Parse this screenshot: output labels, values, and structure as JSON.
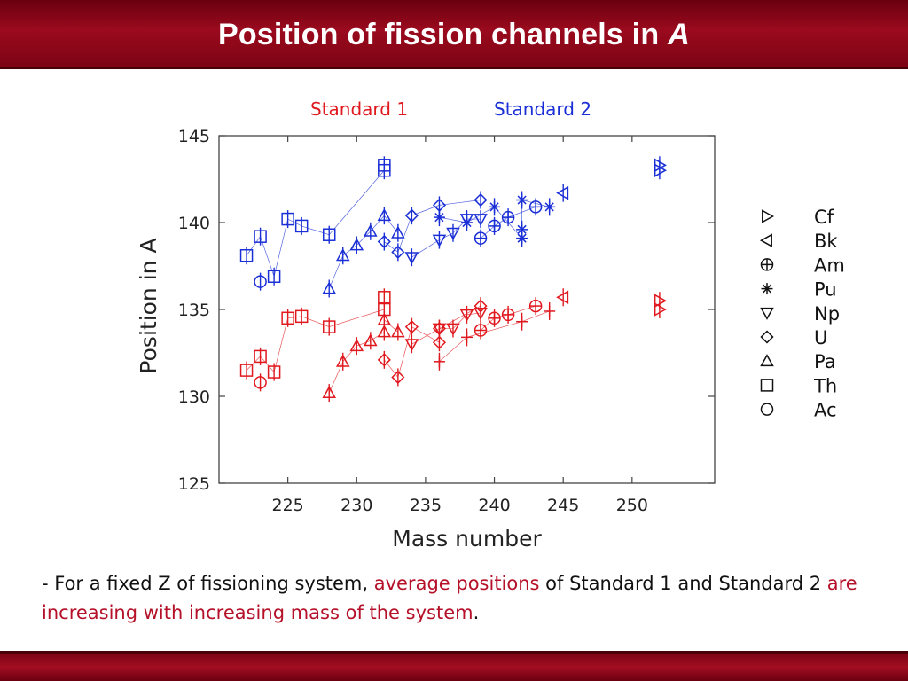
{
  "header": {
    "title_main": "Position of fission channels in",
    "title_var": "A"
  },
  "labels": {
    "standard1": "Standard 1",
    "standard2": "Standard 2"
  },
  "colors": {
    "standard1": "#e0191f",
    "standard2": "#1a2fd6",
    "header": "#9b0a1e",
    "highlight": "#b5122a"
  },
  "bullet": {
    "prefix": "- For a fixed Z of fissioning system, ",
    "hl1": "average positions",
    "mid": " of Standard 1 and Standard 2 ",
    "hl2": "are increasing with increasing mass of the system",
    "suffix": "."
  },
  "chart_data": {
    "type": "scatter",
    "xlabel": "Mass number",
    "ylabel": "Position in A",
    "xlim": [
      220,
      256
    ],
    "ylim": [
      125,
      145
    ],
    "xticks": [
      225,
      230,
      235,
      240,
      245,
      250
    ],
    "yticks": [
      125,
      130,
      135,
      140,
      145
    ],
    "grid": false,
    "legend_position": "right",
    "legend": [
      {
        "symbol": "tri-right",
        "label": "Cf"
      },
      {
        "symbol": "tri-left",
        "label": "Bk"
      },
      {
        "symbol": "circle-plus",
        "label": "Am"
      },
      {
        "symbol": "asterisk",
        "label": "Pu"
      },
      {
        "symbol": "tri-down",
        "label": "Np"
      },
      {
        "symbol": "diamond",
        "label": "U"
      },
      {
        "symbol": "tri-up",
        "label": "Pa"
      },
      {
        "symbol": "square",
        "label": "Th"
      },
      {
        "symbol": "circle",
        "label": "Ac"
      }
    ],
    "series": [
      {
        "name": "Standard 1",
        "element": "Th",
        "symbol": "square",
        "color": "#e0191f",
        "x": [
          222,
          223,
          224,
          225,
          226,
          228,
          232,
          232
        ],
        "y": [
          131.5,
          132.3,
          131.4,
          134.5,
          134.6,
          134.0,
          135.0,
          135.7
        ]
      },
      {
        "name": "Standard 1",
        "element": "Ac",
        "symbol": "circle",
        "color": "#e0191f",
        "x": [
          223
        ],
        "y": [
          130.8
        ]
      },
      {
        "name": "Standard 1",
        "element": "Pa",
        "symbol": "tri-up",
        "color": "#e0191f",
        "x": [
          228,
          229,
          230,
          231,
          232,
          232,
          233
        ],
        "y": [
          130.2,
          132.0,
          132.9,
          133.2,
          133.7,
          134.4,
          133.7
        ]
      },
      {
        "name": "Standard 1",
        "element": "U",
        "symbol": "diamond",
        "color": "#e0191f",
        "x": [
          232,
          233,
          234,
          236,
          236,
          239
        ],
        "y": [
          132.1,
          131.1,
          134.0,
          133.1,
          133.9,
          135.2
        ]
      },
      {
        "name": "Standard 1",
        "element": "Np",
        "symbol": "tri-down",
        "color": "#e0191f",
        "x": [
          234,
          236,
          237,
          238,
          239
        ],
        "y": [
          133.0,
          133.9,
          133.9,
          134.7,
          134.8
        ]
      },
      {
        "name": "Standard 1",
        "element": "Pu",
        "symbol": "plus",
        "color": "#e0191f",
        "x": [
          236,
          238,
          242,
          244
        ],
        "y": [
          132.0,
          133.4,
          134.3,
          134.9
        ]
      },
      {
        "name": "Standard 1",
        "element": "Am",
        "symbol": "circle-plus",
        "color": "#e0191f",
        "x": [
          239,
          240,
          241,
          243
        ],
        "y": [
          133.8,
          134.5,
          134.7,
          135.2
        ]
      },
      {
        "name": "Standard 1",
        "element": "Bk",
        "symbol": "tri-left",
        "color": "#e0191f",
        "x": [
          245
        ],
        "y": [
          135.7
        ]
      },
      {
        "name": "Standard 1",
        "element": "Cf",
        "symbol": "tri-right",
        "color": "#e0191f",
        "x": [
          252,
          252
        ],
        "y": [
          135.0,
          135.5
        ]
      },
      {
        "name": "Standard 2",
        "element": "Th",
        "symbol": "square",
        "color": "#1a2fd6",
        "x": [
          222,
          223,
          224,
          225,
          226,
          228,
          232,
          232
        ],
        "y": [
          138.1,
          139.2,
          136.9,
          140.2,
          139.8,
          139.3,
          143.0,
          143.3
        ]
      },
      {
        "name": "Standard 2",
        "element": "Ac",
        "symbol": "circle",
        "color": "#1a2fd6",
        "x": [
          223
        ],
        "y": [
          136.6
        ]
      },
      {
        "name": "Standard 2",
        "element": "Pa",
        "symbol": "tri-up",
        "color": "#1a2fd6",
        "x": [
          228,
          229,
          230,
          231,
          232,
          233
        ],
        "y": [
          136.2,
          138.1,
          138.7,
          139.5,
          140.4,
          139.4
        ]
      },
      {
        "name": "Standard 2",
        "element": "U",
        "symbol": "diamond",
        "color": "#1a2fd6",
        "x": [
          232,
          233,
          234,
          236,
          239
        ],
        "y": [
          138.9,
          138.3,
          140.4,
          141.0,
          141.3
        ]
      },
      {
        "name": "Standard 2",
        "element": "Np",
        "symbol": "tri-down",
        "color": "#1a2fd6",
        "x": [
          234,
          236,
          237,
          238,
          239
        ],
        "y": [
          138.0,
          139.0,
          139.4,
          140.2,
          140.2
        ]
      },
      {
        "name": "Standard 2",
        "element": "Pu",
        "symbol": "asterisk",
        "color": "#1a2fd6",
        "x": [
          236,
          238,
          240,
          242,
          242,
          242,
          244
        ],
        "y": [
          140.3,
          140.0,
          140.9,
          139.1,
          139.6,
          141.3,
          140.9
        ]
      },
      {
        "name": "Standard 2",
        "element": "Am",
        "symbol": "circle-plus",
        "color": "#1a2fd6",
        "x": [
          239,
          240,
          241,
          243
        ],
        "y": [
          139.1,
          139.8,
          140.3,
          140.9
        ]
      },
      {
        "name": "Standard 2",
        "element": "Bk",
        "symbol": "tri-left",
        "color": "#1a2fd6",
        "x": [
          245
        ],
        "y": [
          141.7
        ]
      },
      {
        "name": "Standard 2",
        "element": "Cf",
        "symbol": "tri-right",
        "color": "#1a2fd6",
        "x": [
          252,
          252
        ],
        "y": [
          143.0,
          143.3
        ]
      }
    ]
  }
}
